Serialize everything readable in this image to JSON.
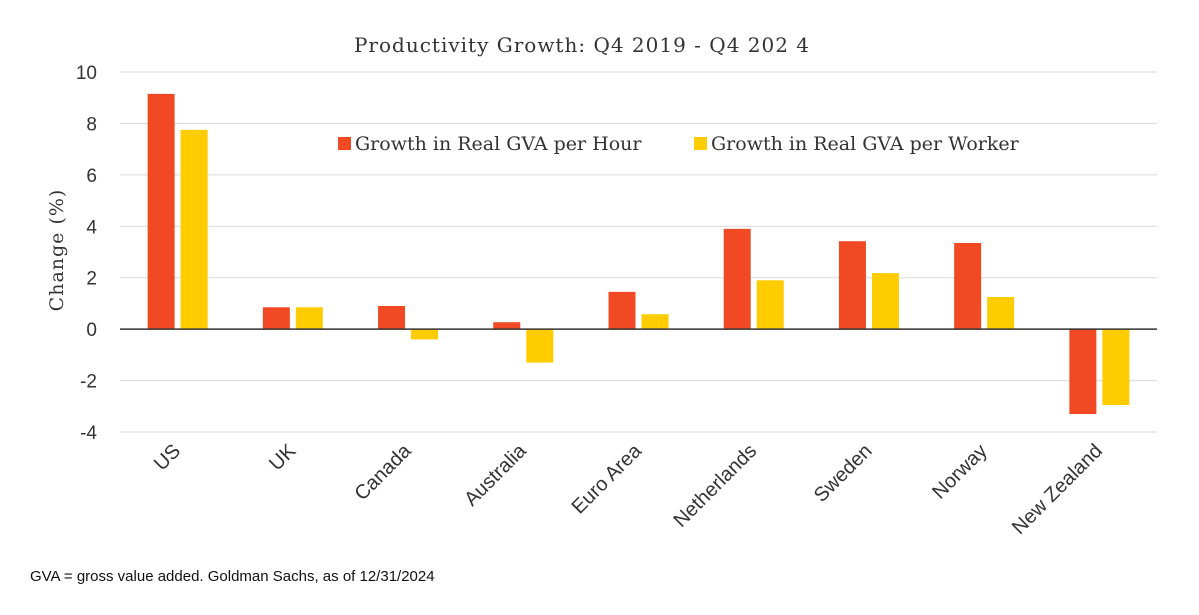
{
  "chart_data": {
    "type": "bar",
    "title": "Productivity Growth: Q4 2019  - Q4 202 4",
    "ylabel": "Change (%)",
    "xlabel": "",
    "ylim": [
      -4,
      10
    ],
    "yticks": [
      10,
      8,
      6,
      4,
      2,
      0,
      -2,
      -4
    ],
    "grid": true,
    "legend_position": "top-center",
    "categories": [
      "US",
      "UK",
      "Canada",
      "Australia",
      "Euro Area",
      "Netherlands",
      "Sweden",
      "Norway",
      "New Zealand"
    ],
    "series": [
      {
        "name": "Growth in Real GVA per Hour",
        "color": "#f04923",
        "values": [
          9.15,
          0.85,
          0.9,
          0.27,
          1.45,
          3.9,
          3.42,
          3.35,
          -3.3
        ]
      },
      {
        "name": "Growth in Real GVA per Worker",
        "color": "#ffcc00",
        "values": [
          7.75,
          0.85,
          -0.4,
          -1.3,
          0.58,
          1.9,
          2.18,
          1.25,
          -2.95
        ]
      }
    ]
  },
  "footnote": "GVA = gross value added. Goldman Sachs, as of 12/31/2024"
}
